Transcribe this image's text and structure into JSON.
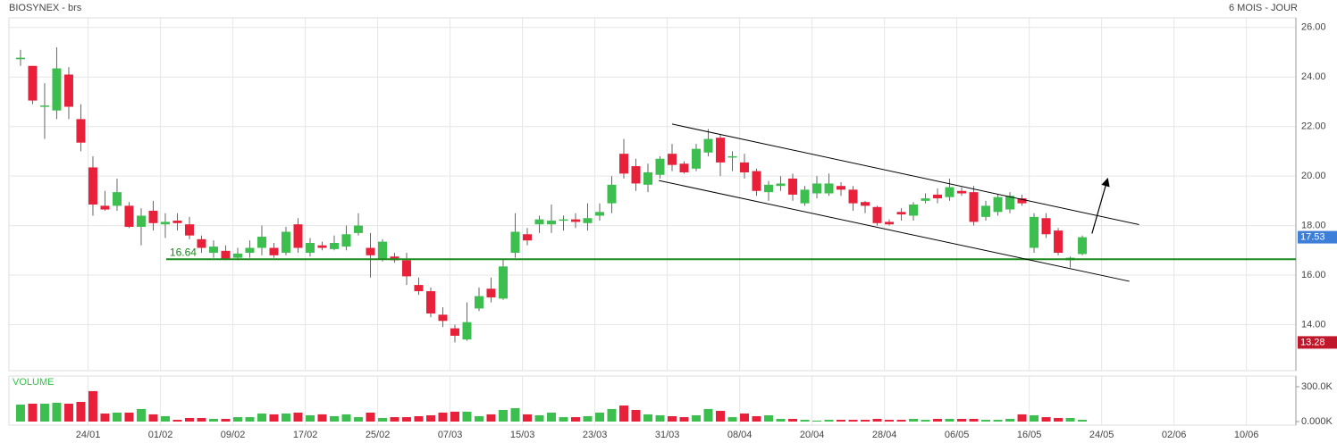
{
  "chart_data": {
    "type": "candlestick",
    "title": "BIOSYNEX - brs",
    "subtitle": "6 MOIS - JOUR",
    "up_color": "#3cbf4f",
    "down_color": "#e8203a",
    "grid": true,
    "x": [
      0,
      1,
      2,
      3,
      4,
      5,
      6,
      7,
      8,
      9,
      10,
      11,
      12,
      13,
      14,
      15,
      16,
      17,
      18,
      19,
      20,
      21,
      22,
      23,
      24,
      25,
      26,
      27,
      28,
      29,
      30,
      31,
      32,
      33,
      34,
      35,
      36,
      37,
      38,
      39,
      40,
      41,
      42,
      43,
      44,
      45,
      46,
      47,
      48,
      49,
      50,
      51,
      52,
      53,
      54,
      55,
      56,
      57,
      58,
      59,
      60,
      61,
      62,
      63,
      64,
      65,
      66,
      67,
      68,
      69,
      70,
      71,
      72,
      73,
      74,
      75,
      76,
      77,
      78,
      79,
      80,
      81,
      82,
      83,
      84,
      85,
      86,
      87,
      88
    ],
    "open": [
      24.72,
      24.45,
      22.8,
      22.65,
      24.1,
      22.3,
      20.35,
      18.8,
      18.8,
      18.8,
      17.95,
      18.6,
      18.05,
      18.2,
      18.05,
      17.45,
      16.9,
      16.98,
      16.7,
      16.9,
      17.1,
      17.1,
      16.9,
      18.05,
      16.9,
      17.2,
      17.05,
      17.15,
      17.7,
      17.1,
      16.65,
      16.75,
      16.6,
      15.6,
      15.35,
      14.4,
      13.85,
      13.4,
      14.65,
      15.45,
      15.05,
      16.9,
      17.65,
      18.05,
      18.05,
      18.2,
      18.25,
      18.1,
      18.4,
      18.9,
      20.9,
      20.4,
      19.65,
      20.05,
      20.9,
      20.5,
      20.3,
      20.95,
      21.55,
      20.75,
      20.55,
      20.2,
      19.35,
      19.6,
      19.9,
      18.9,
      19.3,
      19.3,
      19.6,
      19.45,
      18.95,
      18.75,
      18.15,
      18.55,
      18.4,
      19.0,
      19.25,
      19.15,
      19.4,
      19.35,
      18.35,
      18.55,
      18.65,
      19.1,
      17.1,
      18.3,
      17.8,
      16.6,
      16.85
    ],
    "high": [
      25.1,
      24.45,
      23.75,
      25.2,
      24.4,
      22.9,
      20.8,
      19.4,
      19.9,
      18.95,
      18.7,
      19.0,
      18.5,
      18.5,
      18.35,
      17.6,
      17.4,
      17.2,
      17.1,
      17.4,
      18.0,
      17.3,
      17.95,
      18.3,
      17.5,
      17.35,
      17.6,
      18.0,
      18.5,
      17.7,
      17.45,
      16.9,
      16.9,
      15.9,
      15.5,
      14.7,
      14.0,
      14.9,
      15.5,
      15.9,
      16.65,
      18.5,
      17.9,
      18.4,
      18.85,
      18.4,
      18.5,
      18.9,
      18.9,
      20.0,
      21.5,
      20.7,
      20.5,
      20.8,
      21.3,
      20.6,
      21.3,
      21.9,
      21.7,
      21.0,
      20.9,
      20.3,
      19.8,
      20.0,
      20.1,
      19.6,
      20.0,
      20.1,
      19.75,
      19.6,
      19.0,
      18.8,
      18.25,
      18.7,
      18.95,
      19.3,
      19.5,
      19.9,
      19.55,
      19.6,
      19.0,
      19.25,
      19.35,
      19.25,
      18.5,
      18.5,
      17.9,
      16.75,
      17.6
    ],
    "low": [
      24.45,
      22.9,
      21.5,
      22.3,
      22.3,
      21.0,
      18.4,
      18.6,
      18.6,
      17.9,
      17.2,
      17.8,
      17.5,
      17.8,
      17.45,
      16.9,
      16.7,
      16.6,
      16.6,
      16.7,
      16.8,
      16.7,
      16.8,
      16.9,
      16.75,
      17.0,
      17.0,
      17.0,
      17.6,
      15.9,
      16.55,
      16.5,
      15.6,
      15.2,
      14.3,
      13.9,
      13.28,
      13.35,
      14.55,
      14.9,
      15.0,
      16.7,
      17.2,
      17.7,
      17.7,
      17.8,
      17.9,
      17.8,
      18.2,
      18.5,
      19.9,
      19.4,
      19.35,
      19.9,
      20.2,
      20.1,
      20.2,
      20.8,
      20.0,
      20.2,
      19.9,
      19.2,
      19.0,
      19.4,
      19.0,
      18.8,
      19.1,
      19.2,
      19.2,
      18.6,
      18.5,
      18.0,
      18.0,
      18.2,
      18.2,
      18.9,
      18.9,
      19.0,
      19.2,
      18.0,
      18.2,
      18.4,
      18.5,
      18.8,
      16.9,
      17.5,
      16.8,
      16.3,
      16.8
    ],
    "close": [
      24.78,
      23.05,
      22.85,
      24.35,
      22.8,
      21.35,
      18.85,
      18.65,
      19.35,
      17.95,
      18.4,
      18.1,
      18.15,
      18.1,
      17.6,
      17.1,
      17.15,
      16.65,
      16.87,
      17.1,
      17.55,
      16.8,
      17.75,
      17.1,
      17.3,
      17.1,
      17.3,
      17.65,
      18.0,
      16.8,
      17.35,
      16.6,
      15.95,
      15.35,
      14.45,
      14.15,
      13.55,
      14.1,
      15.15,
      15.1,
      16.35,
      17.75,
      17.4,
      18.25,
      18.2,
      18.25,
      18.15,
      18.3,
      18.55,
      19.65,
      20.1,
      19.7,
      20.15,
      20.7,
      20.45,
      20.15,
      21.1,
      21.5,
      20.55,
      20.8,
      20.15,
      19.4,
      19.65,
      19.7,
      19.25,
      19.45,
      19.7,
      19.7,
      19.45,
      18.9,
      18.8,
      18.1,
      18.05,
      18.45,
      18.85,
      19.1,
      19.1,
      19.55,
      19.3,
      18.15,
      18.8,
      19.15,
      19.2,
      18.9,
      18.35,
      17.65,
      16.9,
      16.7,
      17.53
    ],
    "xlim": [
      -0.96,
      105.7
    ],
    "xticks": [
      {
        "value": 5.6,
        "label": "24/01"
      },
      {
        "value": 11.6,
        "label": "01/02"
      },
      {
        "value": 17.6,
        "label": "09/02"
      },
      {
        "value": 23.6,
        "label": "17/02"
      },
      {
        "value": 29.6,
        "label": "25/02"
      },
      {
        "value": 35.6,
        "label": "07/03"
      },
      {
        "value": 41.6,
        "label": "15/03"
      },
      {
        "value": 47.6,
        "label": "23/03"
      },
      {
        "value": 53.6,
        "label": "31/03"
      },
      {
        "value": 59.6,
        "label": "08/04"
      },
      {
        "value": 65.6,
        "label": "20/04"
      },
      {
        "value": 71.6,
        "label": "28/04"
      },
      {
        "value": 77.6,
        "label": "06/05"
      },
      {
        "value": 83.6,
        "label": "16/05"
      },
      {
        "value": 89.6,
        "label": "24/05"
      },
      {
        "value": 95.6,
        "label": "02/06"
      },
      {
        "value": 101.6,
        "label": "10/06"
      }
    ],
    "ylim": [
      12.14,
      26.39
    ],
    "yticks": [
      {
        "value": 14,
        "label": "14.00"
      },
      {
        "value": 16,
        "label": "16.00"
      },
      {
        "value": 18,
        "label": "18.00"
      },
      {
        "value": 20,
        "label": "20.00"
      },
      {
        "value": 22,
        "label": "22.00"
      },
      {
        "value": 24,
        "label": "24.00"
      },
      {
        "value": 26,
        "label": "26.00"
      }
    ],
    "support": {
      "value": 16.64,
      "from_x": 12.07,
      "color": "#1a8a1a"
    },
    "trendlines": [
      {
        "x": [
          54,
          92.7
        ],
        "y": [
          22.1,
          18.04
        ]
      },
      {
        "x": [
          52.9,
          91.9
        ],
        "y": [
          19.82,
          15.75
        ]
      }
    ],
    "arrow": {
      "x": [
        88.8,
        90.1
      ],
      "y": [
        17.68,
        19.9
      ]
    },
    "last_price": 17.53,
    "last_color": "#3d7fd8",
    "min_price": 13.28,
    "min_color": "#c0182a",
    "volume": {
      "label": "VOLUME",
      "values": [
        146,
        154,
        154,
        162,
        154,
        169,
        262,
        69,
        77,
        77,
        108,
        62,
        46,
        15,
        31,
        31,
        23,
        23,
        38,
        38,
        69,
        62,
        69,
        77,
        54,
        62,
        46,
        62,
        38,
        77,
        31,
        38,
        38,
        46,
        54,
        77,
        85,
        85,
        46,
        62,
        100,
        115,
        62,
        54,
        77,
        38,
        38,
        46,
        77,
        108,
        138,
        100,
        62,
        54,
        46,
        38,
        54,
        108,
        92,
        38,
        69,
        46,
        54,
        23,
        23,
        15,
        8,
        15,
        15,
        15,
        15,
        23,
        15,
        15,
        23,
        15,
        23,
        23,
        23,
        23,
        15,
        15,
        23,
        62,
        54,
        38,
        31,
        31,
        15
      ],
      "ylim": [
        -30.8,
        392
      ],
      "yticks": [
        {
          "value": 0,
          "label": "0.000K"
        },
        {
          "value": 300,
          "label": "300.0K"
        }
      ]
    }
  }
}
